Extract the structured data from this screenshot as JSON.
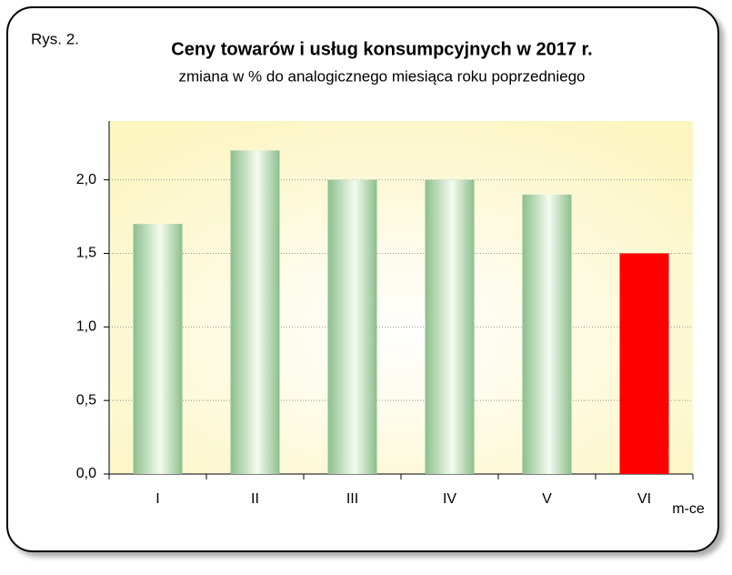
{
  "chart_data": {
    "type": "bar",
    "label": "Rys. 2.",
    "title": "Ceny towarów i usług konsumpcyjnych w 2017 r.",
    "subtitle": "zmiana w % do analogicznego miesiąca roku poprzedniego",
    "x_label": "m-ce",
    "categories": [
      "I",
      "II",
      "III",
      "IV",
      "V",
      "VI"
    ],
    "values": [
      1.7,
      2.2,
      2.0,
      2.0,
      1.9,
      1.5
    ],
    "colors": [
      "#8cbf8c",
      "#8cbf8c",
      "#8cbf8c",
      "#8cbf8c",
      "#8cbf8c",
      "#ff0000"
    ],
    "ylim": [
      0,
      2.4
    ],
    "yticks": [
      {
        "value": 0,
        "label": "0,0"
      },
      {
        "value": 0.5,
        "label": "0,5"
      },
      {
        "value": 1,
        "label": "1,0"
      },
      {
        "value": 1.5,
        "label": "1,5"
      },
      {
        "value": 2,
        "label": "2,0"
      }
    ],
    "grid": true
  }
}
